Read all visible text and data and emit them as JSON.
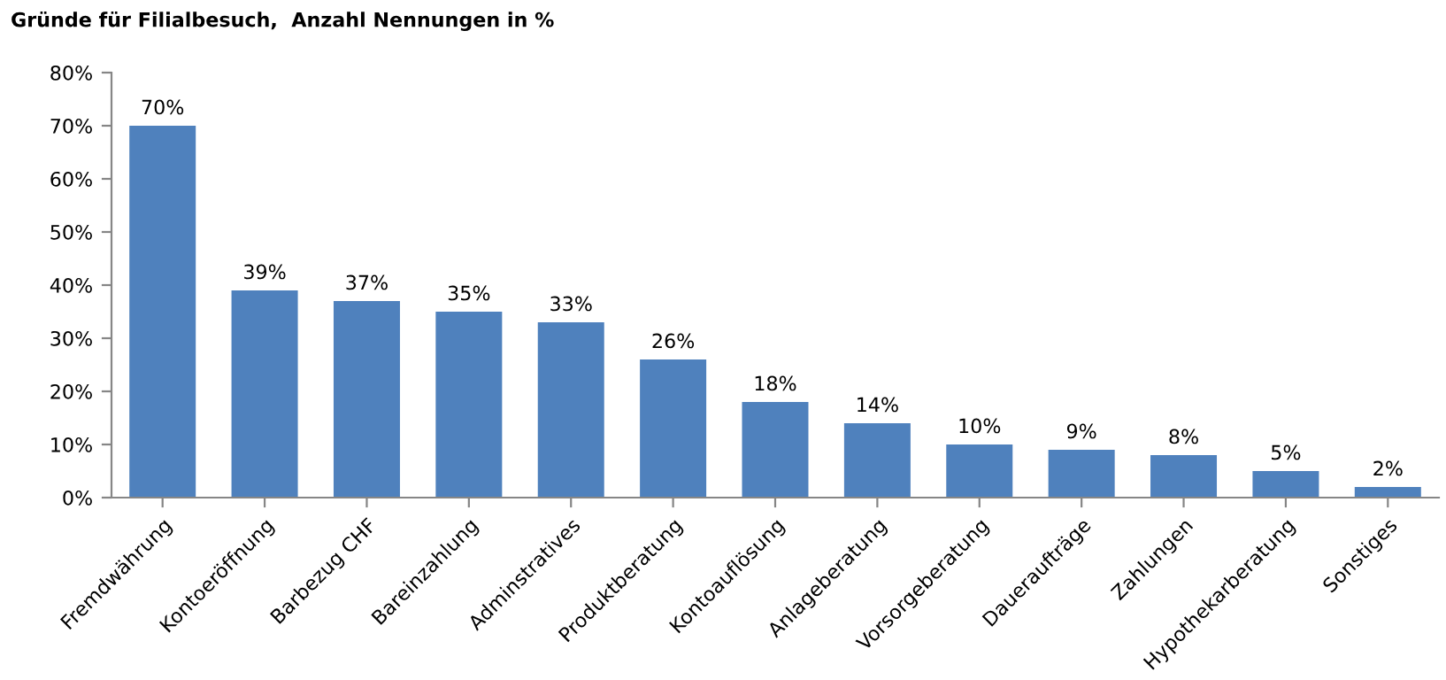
{
  "chart_data": {
    "type": "bar",
    "title": "Gründe für Filialbesuch,  Anzahl Nennungen in %",
    "categories": [
      "Fremdwährung",
      "Kontoeröffnung",
      "Barbezug CHF",
      "Bareinzahlung",
      "Adminstratives",
      "Produktberatung",
      "Kontoauflösung",
      "Anlageberatung",
      "Vorsorgeberatung",
      "Daueraufträge",
      "Zahlungen",
      "Hypothekarberatung",
      "Sonstiges"
    ],
    "values": [
      70,
      39,
      37,
      35,
      33,
      26,
      18,
      14,
      10,
      9,
      8,
      5,
      2
    ],
    "value_labels": [
      "70%",
      "39%",
      "37%",
      "35%",
      "33%",
      "26%",
      "18%",
      "14%",
      "10%",
      "9%",
      "8%",
      "5%",
      "2%"
    ],
    "color": "#4f81bd",
    "ylim": [
      0,
      80
    ],
    "yticks": [
      {
        "value": 0,
        "label": "0%"
      },
      {
        "value": 10,
        "label": "10%"
      },
      {
        "value": 20,
        "label": "20%"
      },
      {
        "value": 30,
        "label": "30%"
      },
      {
        "value": 40,
        "label": "40%"
      },
      {
        "value": 50,
        "label": "50%"
      },
      {
        "value": 60,
        "label": "60%"
      },
      {
        "value": 70,
        "label": "70%"
      },
      {
        "value": 80,
        "label": "80%"
      }
    ],
    "grid": false,
    "legend": false
  }
}
